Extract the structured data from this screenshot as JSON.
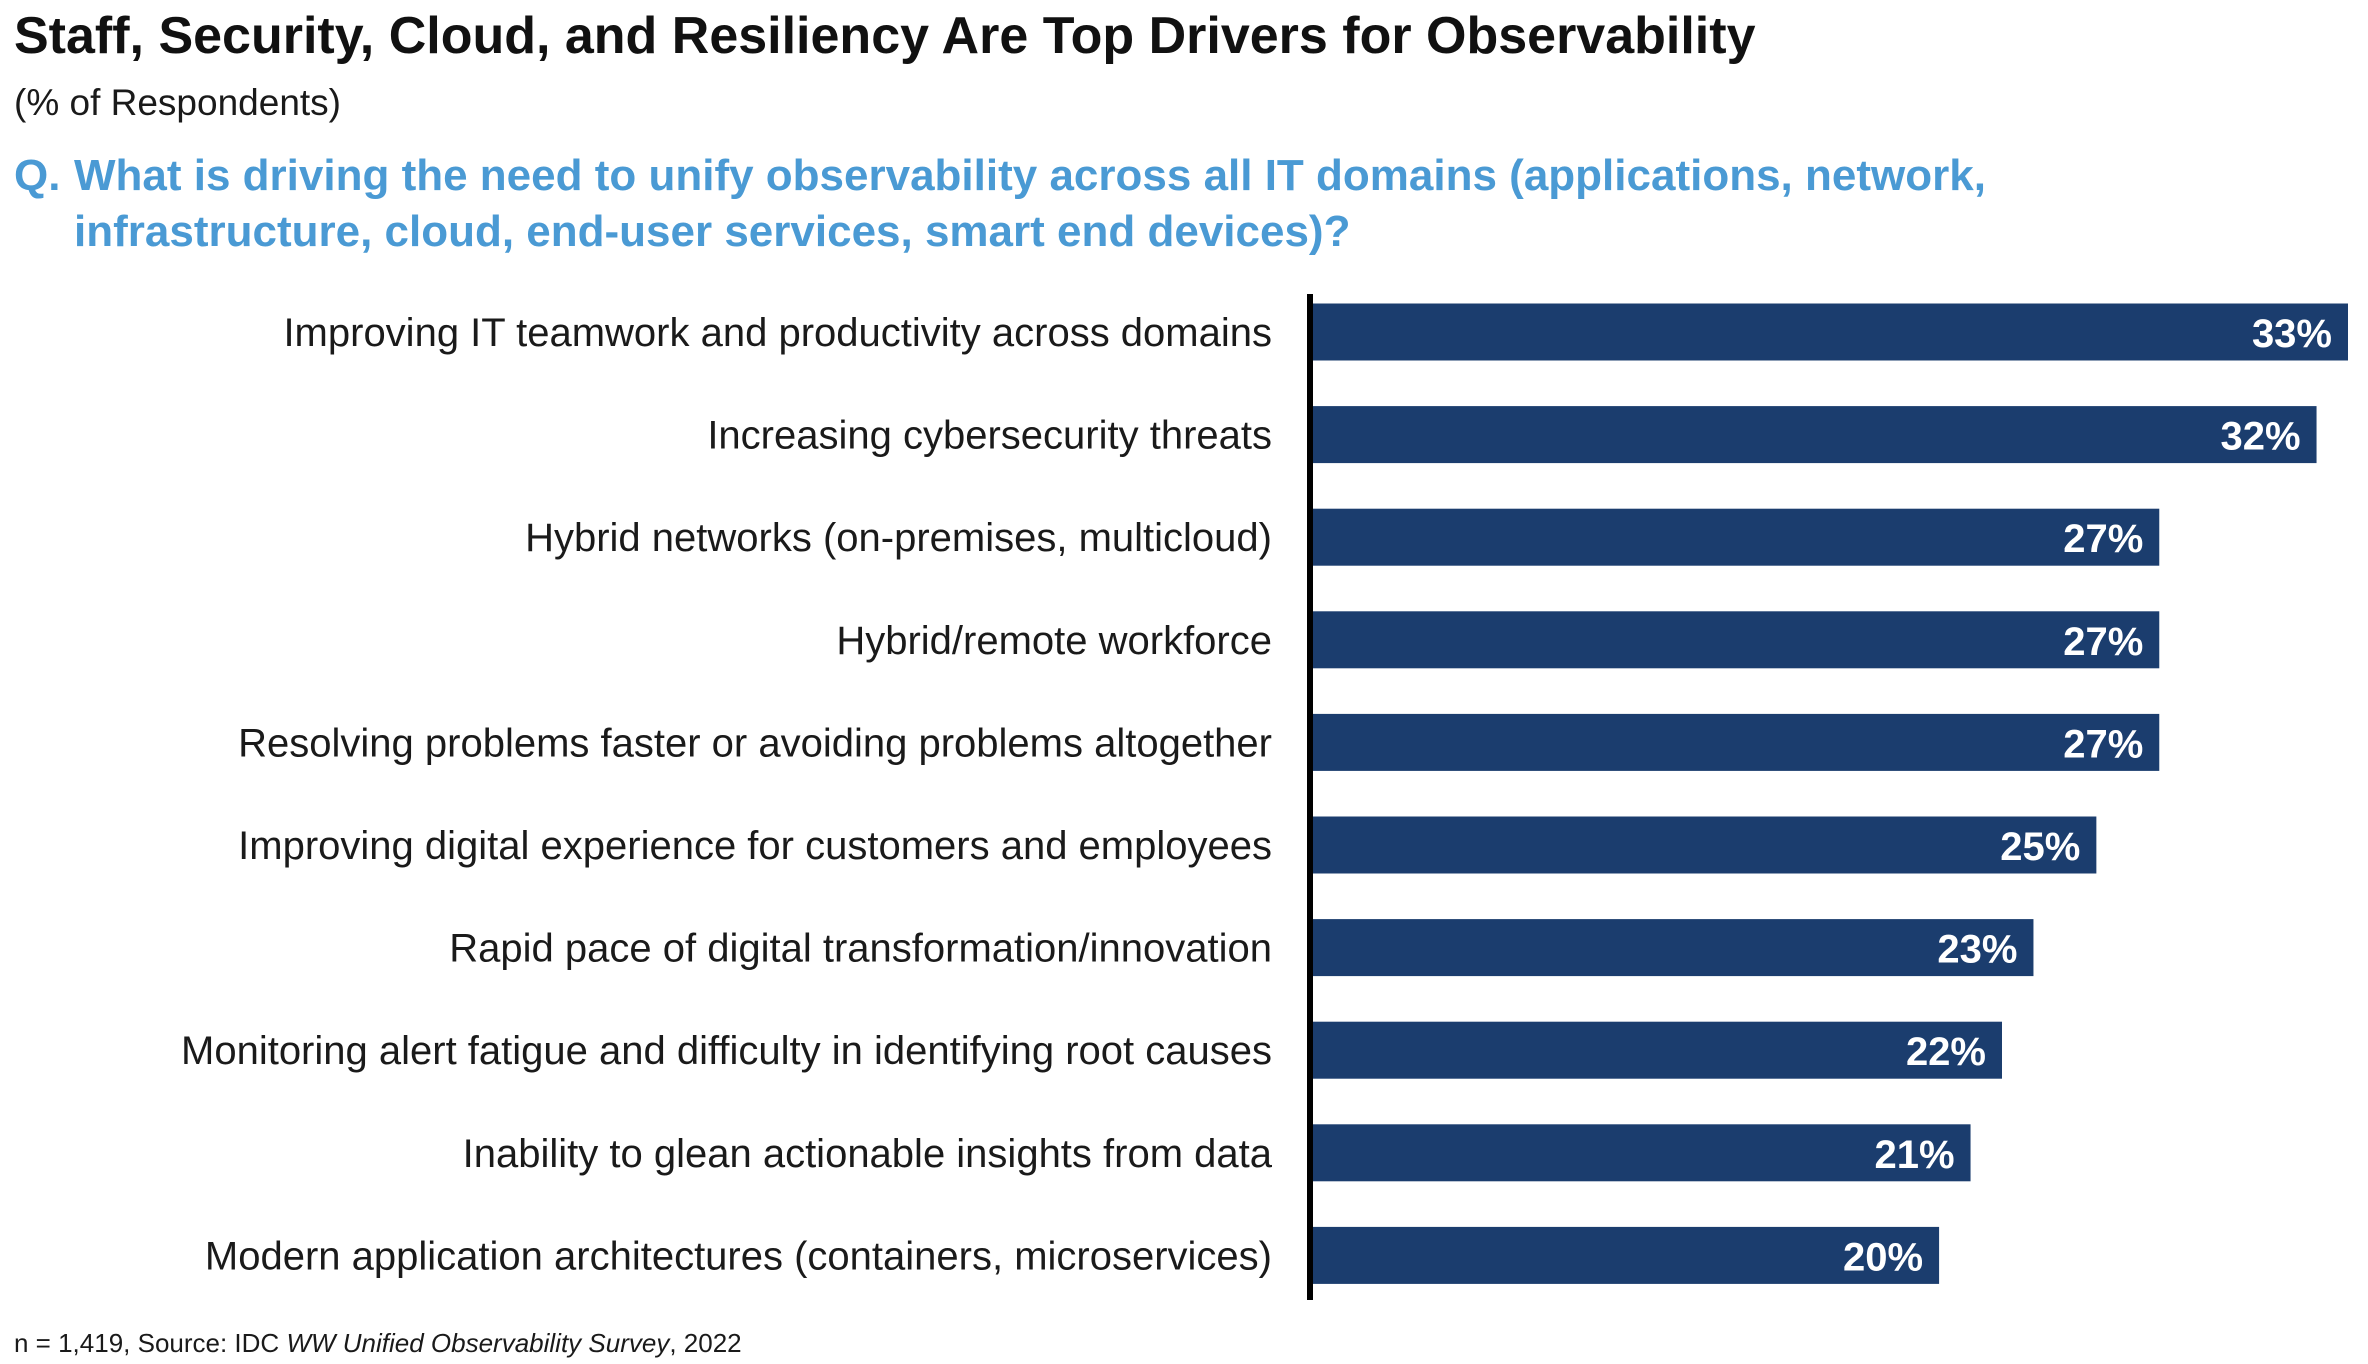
{
  "title": "Staff, Security, Cloud, and Resiliency Are Top Drivers for Observability",
  "subtitle": "(% of Respondents)",
  "question": {
    "prefix": "Q.",
    "line1": "What is driving the need to unify observability across all IT domains (applications, network,",
    "line2": "infrastructure, cloud, end-user services, smart end devices)?"
  },
  "footer": {
    "prefix": "n = 1,419, Source: IDC ",
    "survey_name": "WW Unified Observability Survey",
    "suffix": ", 2022"
  },
  "colors": {
    "bar": "#1b3d6e",
    "axis": "#000000",
    "question": "#4a9ad4"
  },
  "chart_data": {
    "type": "bar",
    "orientation": "horizontal",
    "categories": [
      "Improving IT teamwork and productivity across domains",
      "Increasing cybersecurity threats",
      "Hybrid networks (on-premises, multicloud)",
      "Hybrid/remote workforce",
      "Resolving problems faster or avoiding problems altogether",
      "Improving digital experience for customers and employees",
      "Rapid pace of digital transformation/innovation",
      "Monitoring alert fatigue and difficulty in identifying root causes",
      "Inability to glean actionable insights from data",
      "Modern application architectures (containers, microservices)"
    ],
    "values": [
      33,
      32,
      27,
      27,
      27,
      25,
      23,
      22,
      21,
      20
    ],
    "value_labels": [
      "33%",
      "32%",
      "27%",
      "27%",
      "27%",
      "25%",
      "23%",
      "22%",
      "21%",
      "20%"
    ],
    "unit": "%",
    "xlim": [
      0,
      33
    ],
    "grid": false,
    "legend": "none"
  }
}
